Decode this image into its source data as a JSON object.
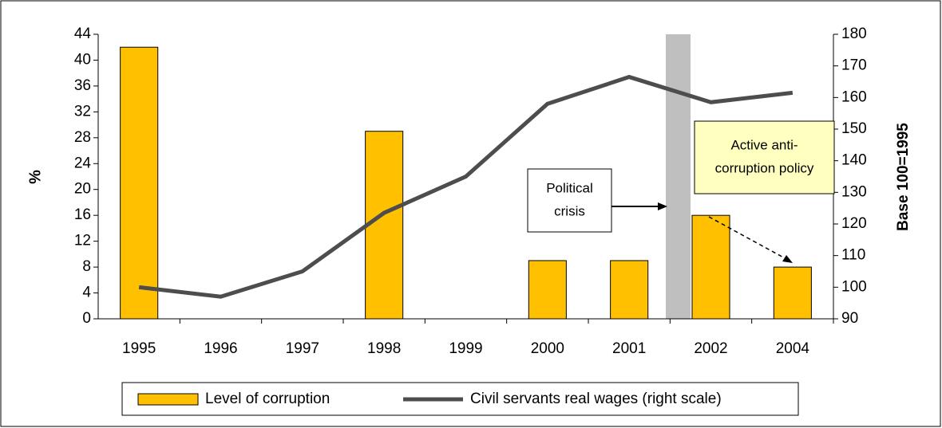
{
  "chart_data": {
    "type": "bar_line",
    "categories": [
      "1995",
      "1996",
      "1997",
      "1998",
      "1999",
      "2000",
      "2001",
      "2002",
      "2004"
    ],
    "series": [
      {
        "name": "Level of corruption",
        "type": "bar",
        "color": "#ffc000",
        "values": [
          42,
          null,
          null,
          29,
          null,
          9,
          9,
          16,
          8
        ]
      },
      {
        "name": "Civil servants real wages (right scale)",
        "type": "line",
        "axis": "y2",
        "color": "#4d4d4d",
        "values": [
          100,
          97,
          105,
          123.5,
          135,
          158,
          166.5,
          158.5,
          161.5
        ]
      }
    ],
    "ylabel": "%",
    "y2label": "Base 100=1995",
    "ylim": [
      0,
      44
    ],
    "yticks": [
      0,
      4,
      8,
      12,
      16,
      20,
      24,
      28,
      32,
      36,
      40,
      44
    ],
    "y2lim": [
      90,
      180
    ],
    "y2ticks": [
      90,
      100,
      110,
      120,
      130,
      140,
      150,
      160,
      170,
      180
    ],
    "annotations": [
      {
        "lines": [
          "Political",
          "crisis"
        ]
      },
      {
        "lines": [
          "Active anti-",
          "corruption policy"
        ]
      }
    ],
    "legend": "bottom"
  }
}
